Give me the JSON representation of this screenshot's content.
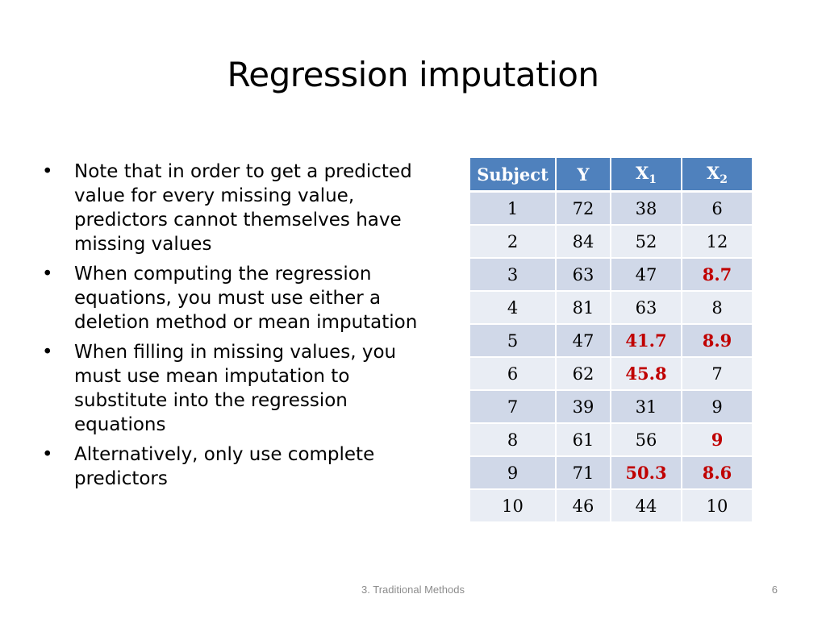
{
  "slide": {
    "title": "Regression imputation",
    "bullets": [
      "Note that in order to get a predicted value for every missing value, predictors cannot themselves have missing values",
      "When computing the regression equations, you must use either a deletion method or mean imputation",
      "When filling in missing values, you must use mean imputation to substitute into the regression equations",
      "Alternatively, only use complete predictors"
    ],
    "bullet_symbol": "•"
  },
  "table": {
    "headers": {
      "subject": "Subject",
      "y": "Y",
      "x1_main": "X",
      "x1_sub": "1",
      "x2_main": "X",
      "x2_sub": "2"
    },
    "rows": [
      {
        "subject": "1",
        "y": "72",
        "x1": "38",
        "x2": "6",
        "x1_imputed": false,
        "x2_imputed": false
      },
      {
        "subject": "2",
        "y": "84",
        "x1": "52",
        "x2": "12",
        "x1_imputed": false,
        "x2_imputed": false
      },
      {
        "subject": "3",
        "y": "63",
        "x1": "47",
        "x2": "8.7",
        "x1_imputed": false,
        "x2_imputed": true
      },
      {
        "subject": "4",
        "y": "81",
        "x1": "63",
        "x2": "8",
        "x1_imputed": false,
        "x2_imputed": false
      },
      {
        "subject": "5",
        "y": "47",
        "x1": "41.7",
        "x2": "8.9",
        "x1_imputed": true,
        "x2_imputed": true
      },
      {
        "subject": "6",
        "y": "62",
        "x1": "45.8",
        "x2": "7",
        "x1_imputed": true,
        "x2_imputed": false
      },
      {
        "subject": "7",
        "y": "39",
        "x1": "31",
        "x2": "9",
        "x1_imputed": false,
        "x2_imputed": false
      },
      {
        "subject": "8",
        "y": "61",
        "x1": "56",
        "x2": "9",
        "x1_imputed": false,
        "x2_imputed": true
      },
      {
        "subject": "9",
        "y": "71",
        "x1": "50.3",
        "x2": "8.6",
        "x1_imputed": true,
        "x2_imputed": true
      },
      {
        "subject": "10",
        "y": "46",
        "x1": "44",
        "x2": "10",
        "x1_imputed": false,
        "x2_imputed": false
      }
    ]
  },
  "footer": {
    "section": "3. Traditional Methods",
    "page_number": "6"
  },
  "colors": {
    "header_bg": "#4f81bd",
    "row_odd": "#d0d8e8",
    "row_even": "#e9edf4",
    "imputed_value": "#c00000",
    "footer_text": "#8c8c8c"
  }
}
